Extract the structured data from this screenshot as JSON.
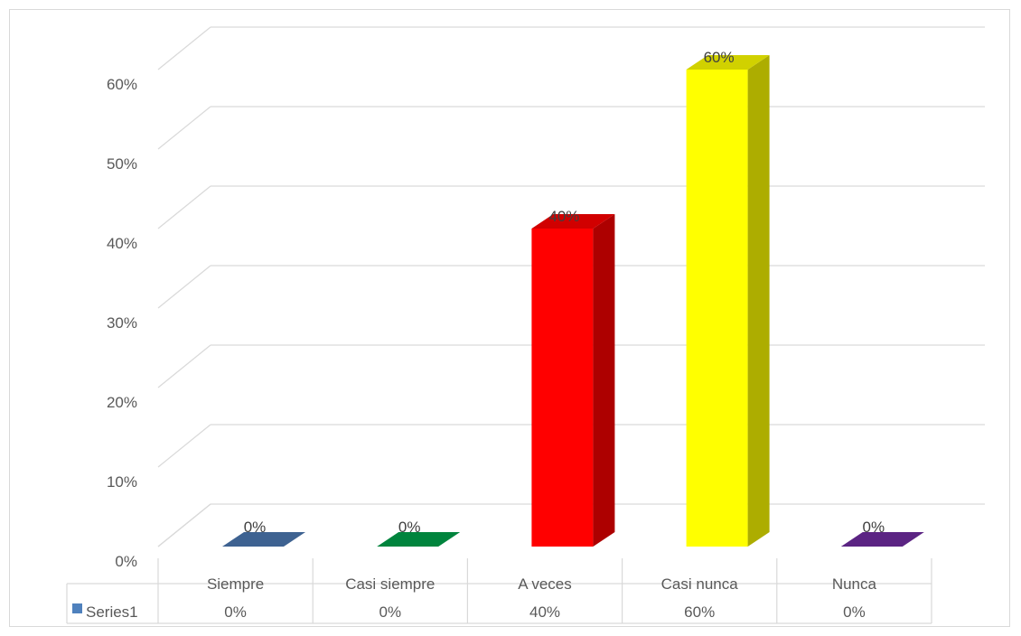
{
  "chart_data": {
    "type": "bar",
    "style": "3d-clustered-column-with-data-table",
    "categories": [
      "Siempre",
      "Casi siempre",
      "A veces",
      "Casi nunca",
      "Nunca"
    ],
    "series": [
      {
        "name": "Series1",
        "values": [
          0,
          0,
          40,
          60,
          0
        ],
        "legend_color": "#4f81bd"
      }
    ],
    "bar_colors": [
      "#3e6291",
      "#00843d",
      "#ff0000",
      "#ffff00",
      "#5b2483"
    ],
    "data_labels": [
      "0%",
      "0%",
      "40%",
      "60%",
      "0%"
    ],
    "table_values": [
      "0%",
      "0%",
      "40%",
      "60%",
      "0%"
    ],
    "y_ticks": [
      "0%",
      "10%",
      "20%",
      "30%",
      "40%",
      "50%",
      "60%"
    ],
    "ylim": [
      0,
      60
    ],
    "ystep": 10,
    "gridlines": true,
    "legend": "data-table-left",
    "title": "",
    "xlabel": "",
    "ylabel": ""
  }
}
